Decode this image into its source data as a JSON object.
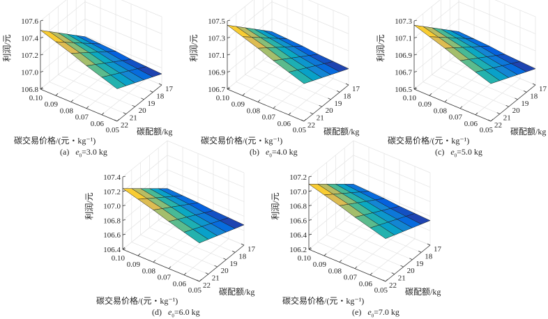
{
  "chart_data": [
    {
      "type": "surface",
      "panel_label": "(a)",
      "e0_label": "e",
      "e0_sub": "0",
      "e0_value": "=3.0 kg",
      "xlabel": "碳交易价格/(元・kg⁻¹)",
      "ylabel": "碳配额/kg",
      "zlabel": "利润/元",
      "x": [
        0.1,
        0.09,
        0.08,
        0.07,
        0.06,
        0.05
      ],
      "x_ticks": [
        "0.10",
        "0.09",
        "0.08",
        "0.07",
        "0.06",
        "0.05"
      ],
      "y": [
        17,
        18,
        19,
        20,
        21,
        22
      ],
      "y_ticks": [
        "17",
        "18",
        "19",
        "20",
        "21",
        "22"
      ],
      "zlim": [
        106.8,
        107.6
      ],
      "z_ticks": [
        "106.8",
        "107.0",
        "107.2",
        "107.4",
        "107.6"
      ],
      "grid": true,
      "colormap": "parula",
      "z": [
        [
          106.99,
          107.09,
          107.19,
          107.29,
          107.39,
          107.49
        ],
        [
          106.98,
          107.07,
          107.16,
          107.25,
          107.34,
          107.43
        ],
        [
          106.97,
          107.05,
          107.13,
          107.21,
          107.29,
          107.37
        ],
        [
          106.95,
          107.02,
          107.09,
          107.16,
          107.23,
          107.3
        ],
        [
          106.94,
          107.0,
          107.06,
          107.12,
          107.18,
          107.24
        ],
        [
          106.93,
          106.98,
          107.03,
          107.08,
          107.13,
          107.18
        ]
      ]
    },
    {
      "type": "surface",
      "panel_label": "(b)",
      "e0_label": "e",
      "e0_sub": "0",
      "e0_value": "=4.0 kg",
      "xlabel": "碳交易价格/(元・kg⁻¹)",
      "ylabel": "碳配额/kg",
      "zlabel": "利润/元",
      "x": [
        0.1,
        0.09,
        0.08,
        0.07,
        0.06,
        0.05
      ],
      "x_ticks": [
        "0.10",
        "0.09",
        "0.08",
        "0.07",
        "0.06",
        "0.05"
      ],
      "y": [
        17,
        18,
        19,
        20,
        21,
        22
      ],
      "y_ticks": [
        "17",
        "18",
        "19",
        "20",
        "21",
        "22"
      ],
      "zlim": [
        106.7,
        107.5
      ],
      "z_ticks": [
        "106.7",
        "106.9",
        "107.1",
        "107.3",
        "107.5"
      ],
      "grid": true,
      "colormap": "parula",
      "z": [
        [
          106.95,
          107.05,
          107.15,
          107.25,
          107.35,
          107.45
        ],
        [
          106.94,
          107.03,
          107.12,
          107.21,
          107.3,
          107.39
        ],
        [
          106.93,
          107.01,
          107.09,
          107.17,
          107.25,
          107.33
        ],
        [
          106.91,
          106.98,
          107.05,
          107.12,
          107.19,
          107.26
        ],
        [
          106.9,
          106.96,
          107.02,
          107.08,
          107.14,
          107.2
        ],
        [
          106.89,
          106.94,
          106.99,
          107.04,
          107.09,
          107.14
        ]
      ]
    },
    {
      "type": "surface",
      "panel_label": "(c)",
      "e0_label": "e",
      "e0_sub": "0",
      "e0_value": "=5.0 kg",
      "xlabel": "碳交易价格/(元・kg⁻¹)",
      "ylabel": "碳配额/kg",
      "zlabel": "利润/元",
      "x": [
        0.1,
        0.09,
        0.08,
        0.07,
        0.06,
        0.05
      ],
      "x_ticks": [
        "0.10",
        "0.09",
        "0.08",
        "0.07",
        "0.06",
        "0.05"
      ],
      "y": [
        17,
        18,
        19,
        20,
        21,
        22
      ],
      "y_ticks": [
        "17",
        "18",
        "19",
        "20",
        "21",
        "22"
      ],
      "zlim": [
        106.5,
        107.3
      ],
      "z_ticks": [
        "106.5",
        "106.7",
        "106.9",
        "107.1",
        "107.3"
      ],
      "grid": true,
      "colormap": "parula",
      "z": [
        [
          106.75,
          106.85,
          106.95,
          107.05,
          107.15,
          107.25
        ],
        [
          106.74,
          106.83,
          106.92,
          107.01,
          107.1,
          107.19
        ],
        [
          106.73,
          106.81,
          106.89,
          106.97,
          107.05,
          107.13
        ],
        [
          106.71,
          106.78,
          106.85,
          106.92,
          106.99,
          107.06
        ],
        [
          106.7,
          106.76,
          106.82,
          106.88,
          106.94,
          107.0
        ],
        [
          106.69,
          106.74,
          106.79,
          106.84,
          106.89,
          106.94
        ]
      ]
    },
    {
      "type": "surface",
      "panel_label": "(d)",
      "e0_label": "e",
      "e0_sub": "0",
      "e0_value": "=6.0 kg",
      "xlabel": "碳交易价格/(元・kg⁻¹)",
      "ylabel": "碳配额/kg",
      "zlabel": "利润/元",
      "x": [
        0.1,
        0.09,
        0.08,
        0.07,
        0.06,
        0.05
      ],
      "x_ticks": [
        "0.10",
        "0.09",
        "0.08",
        "0.07",
        "0.06",
        "0.05"
      ],
      "y": [
        17,
        18,
        19,
        20,
        21,
        22
      ],
      "y_ticks": [
        "17",
        "18",
        "19",
        "20",
        "21",
        "22"
      ],
      "zlim": [
        106.4,
        107.4
      ],
      "z_ticks": [
        "106.4",
        "106.6",
        "106.8",
        "107.0",
        "107.2",
        "107.4"
      ],
      "grid": true,
      "colormap": "parula",
      "z": [
        [
          106.74,
          106.84,
          106.94,
          107.04,
          107.14,
          107.24
        ],
        [
          106.73,
          106.82,
          106.91,
          107.0,
          107.09,
          107.18
        ],
        [
          106.72,
          106.8,
          106.88,
          106.96,
          107.04,
          107.12
        ],
        [
          106.7,
          106.77,
          106.84,
          106.91,
          106.98,
          107.05
        ],
        [
          106.69,
          106.75,
          106.81,
          106.87,
          106.93,
          106.99
        ],
        [
          106.68,
          106.73,
          106.78,
          106.83,
          106.88,
          106.93
        ]
      ]
    },
    {
      "type": "surface",
      "panel_label": "(e)",
      "e0_label": "e",
      "e0_sub": "0",
      "e0_value": "=7.0 kg",
      "xlabel": "碳交易价格/(元・kg⁻¹)",
      "ylabel": "碳配额/kg",
      "zlabel": "利润/元",
      "x": [
        0.1,
        0.09,
        0.08,
        0.07,
        0.06,
        0.05
      ],
      "x_ticks": [
        "0.10",
        "0.09",
        "0.08",
        "0.07",
        "0.06",
        "0.05"
      ],
      "y": [
        17,
        18,
        19,
        20,
        21,
        22
      ],
      "y_ticks": [
        "17",
        "18",
        "19",
        "20",
        "21",
        "22"
      ],
      "zlim": [
        106.2,
        107.2
      ],
      "z_ticks": [
        "106.2",
        "106.4",
        "106.6",
        "106.8",
        "107.0",
        "107.2"
      ],
      "grid": true,
      "colormap": "parula",
      "z": [
        [
          106.6,
          106.7,
          106.8,
          106.9,
          107.0,
          107.1
        ],
        [
          106.59,
          106.68,
          106.77,
          106.86,
          106.95,
          107.04
        ],
        [
          106.58,
          106.66,
          106.74,
          106.82,
          106.9,
          106.98
        ],
        [
          106.56,
          106.63,
          106.7,
          106.77,
          106.84,
          106.91
        ],
        [
          106.55,
          106.61,
          106.67,
          106.73,
          106.79,
          106.85
        ],
        [
          106.54,
          106.59,
          106.64,
          106.69,
          106.74,
          106.79
        ]
      ]
    }
  ]
}
